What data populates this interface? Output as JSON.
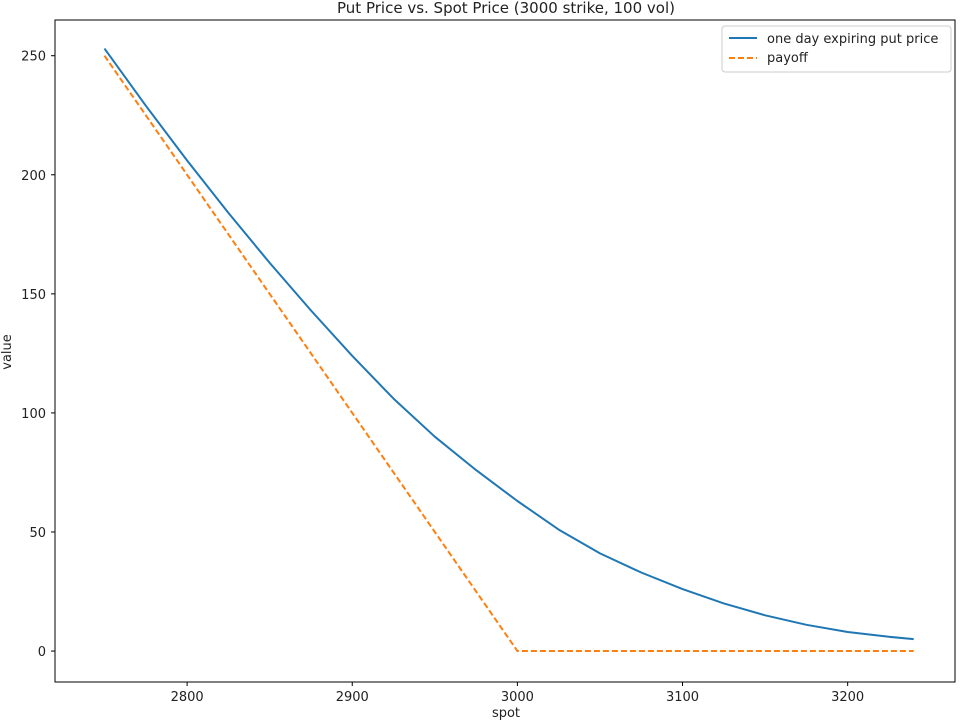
{
  "chart_data": {
    "type": "line",
    "title": "Put Price vs. Spot Price (3000 strike, 100 vol)",
    "xlabel": "spot",
    "ylabel": "value",
    "xlim": [
      2720,
      3265
    ],
    "ylim": [
      -13,
      265
    ],
    "x_ticks": [
      2800,
      2900,
      3000,
      3100,
      3200
    ],
    "y_ticks": [
      0,
      50,
      100,
      150,
      200,
      250
    ],
    "grid": false,
    "legend_position": "top-right",
    "series": [
      {
        "name": "one day expiring put price",
        "color": "#1f77b4",
        "style": "solid",
        "x": [
          2750,
          2775,
          2800,
          2825,
          2850,
          2875,
          2900,
          2925,
          2950,
          2975,
          3000,
          3025,
          3050,
          3075,
          3100,
          3125,
          3150,
          3175,
          3200,
          3225,
          3240
        ],
        "y": [
          253,
          229,
          206,
          184,
          163,
          143,
          124,
          106,
          90,
          76,
          63,
          51,
          41,
          33,
          26,
          20,
          15,
          11,
          8,
          6,
          5
        ]
      },
      {
        "name": "payoff",
        "color": "#ff7f0e",
        "style": "dashed",
        "x": [
          2750,
          3000,
          3240
        ],
        "y": [
          250,
          0,
          0
        ]
      }
    ]
  }
}
